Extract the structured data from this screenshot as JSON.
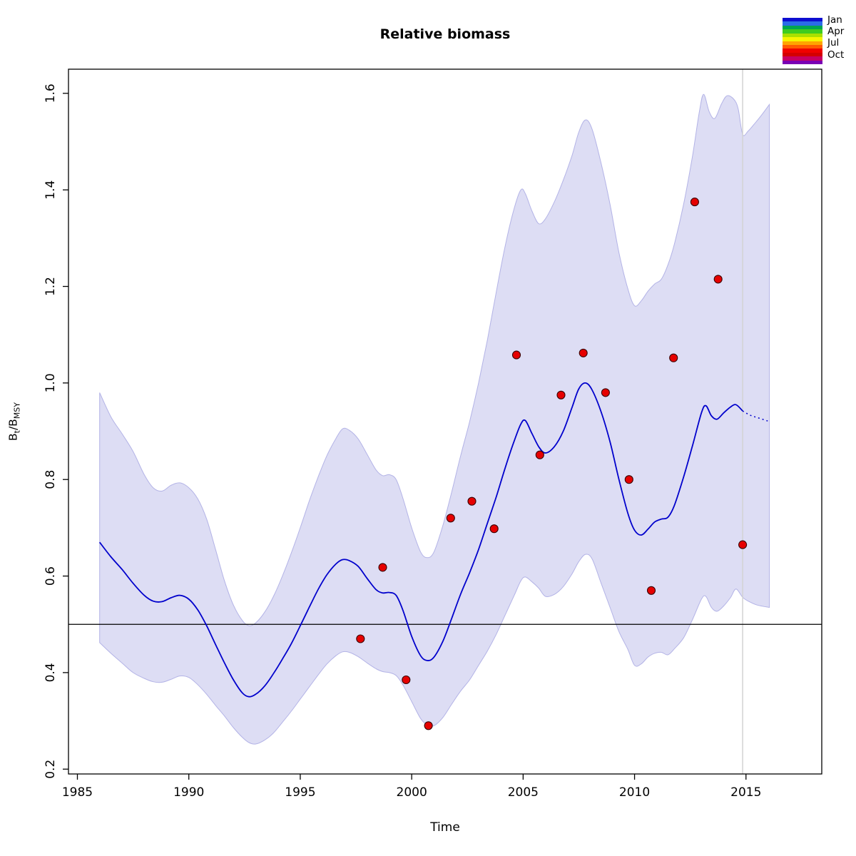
{
  "chart_data": {
    "type": "line",
    "title": "Relative biomass",
    "xlabel": "Time",
    "ylabel": "Bt/BMSY",
    "ylabel_parts": [
      "B",
      "t",
      "/B",
      "MSY"
    ],
    "xlim": [
      1984.6,
      2018.4
    ],
    "ylim": [
      0.19,
      1.65
    ],
    "xtick_values": [
      1985,
      1990,
      1995,
      2000,
      2005,
      2010,
      2015
    ],
    "xtick_labels": [
      "1985",
      "1990",
      "1995",
      "2000",
      "2005",
      "2010",
      "2015"
    ],
    "ytick_values": [
      0.2,
      0.4,
      0.6,
      0.8,
      1.0,
      1.2,
      1.4,
      1.6
    ],
    "ytick_labels": [
      "0.2",
      "0.4",
      "0.6",
      "0.8",
      "1.0",
      "1.2",
      "1.4",
      "1.6"
    ],
    "grid": false,
    "reference_lines": {
      "hline_y": 0.5,
      "vline_x": 2014.85
    },
    "series": [
      {
        "name": "biomass-estimate",
        "type": "line",
        "style": "solid",
        "points": [
          [
            1986.0,
            0.67
          ],
          [
            1986.5,
            0.64
          ],
          [
            1987.0,
            0.614
          ],
          [
            1987.5,
            0.585
          ],
          [
            1988.0,
            0.56
          ],
          [
            1988.4,
            0.548
          ],
          [
            1988.8,
            0.547
          ],
          [
            1989.2,
            0.555
          ],
          [
            1989.6,
            0.56
          ],
          [
            1990.0,
            0.552
          ],
          [
            1990.4,
            0.53
          ],
          [
            1990.8,
            0.497
          ],
          [
            1991.2,
            0.458
          ],
          [
            1991.6,
            0.42
          ],
          [
            1992.0,
            0.385
          ],
          [
            1992.4,
            0.358
          ],
          [
            1992.7,
            0.35
          ],
          [
            1993.0,
            0.355
          ],
          [
            1993.4,
            0.372
          ],
          [
            1993.8,
            0.398
          ],
          [
            1994.2,
            0.428
          ],
          [
            1994.6,
            0.46
          ],
          [
            1995.0,
            0.497
          ],
          [
            1995.4,
            0.535
          ],
          [
            1995.8,
            0.572
          ],
          [
            1996.2,
            0.603
          ],
          [
            1996.6,
            0.625
          ],
          [
            1996.9,
            0.634
          ],
          [
            1997.2,
            0.632
          ],
          [
            1997.6,
            0.62
          ],
          [
            1998.0,
            0.595
          ],
          [
            1998.4,
            0.572
          ],
          [
            1998.7,
            0.565
          ],
          [
            1999.0,
            0.566
          ],
          [
            1999.3,
            0.56
          ],
          [
            1999.6,
            0.53
          ],
          [
            2000.0,
            0.475
          ],
          [
            2000.4,
            0.435
          ],
          [
            2000.7,
            0.425
          ],
          [
            2001.0,
            0.432
          ],
          [
            2001.4,
            0.465
          ],
          [
            2001.8,
            0.513
          ],
          [
            2002.2,
            0.563
          ],
          [
            2002.6,
            0.607
          ],
          [
            2003.0,
            0.655
          ],
          [
            2003.4,
            0.71
          ],
          [
            2003.8,
            0.765
          ],
          [
            2004.2,
            0.825
          ],
          [
            2004.6,
            0.88
          ],
          [
            2004.9,
            0.915
          ],
          [
            2005.1,
            0.922
          ],
          [
            2005.4,
            0.895
          ],
          [
            2005.7,
            0.868
          ],
          [
            2006.0,
            0.855
          ],
          [
            2006.4,
            0.868
          ],
          [
            2006.8,
            0.9
          ],
          [
            2007.2,
            0.95
          ],
          [
            2007.5,
            0.988
          ],
          [
            2007.8,
            1.0
          ],
          [
            2008.1,
            0.985
          ],
          [
            2008.5,
            0.94
          ],
          [
            2008.9,
            0.878
          ],
          [
            2009.3,
            0.8
          ],
          [
            2009.7,
            0.73
          ],
          [
            2010.0,
            0.695
          ],
          [
            2010.3,
            0.685
          ],
          [
            2010.6,
            0.697
          ],
          [
            2010.9,
            0.712
          ],
          [
            2011.2,
            0.718
          ],
          [
            2011.5,
            0.722
          ],
          [
            2011.8,
            0.748
          ],
          [
            2012.2,
            0.805
          ],
          [
            2012.6,
            0.87
          ],
          [
            2013.0,
            0.938
          ],
          [
            2013.2,
            0.953
          ],
          [
            2013.45,
            0.932
          ],
          [
            2013.7,
            0.925
          ],
          [
            2014.0,
            0.938
          ],
          [
            2014.3,
            0.95
          ],
          [
            2014.55,
            0.955
          ],
          [
            2014.85,
            0.942
          ]
        ]
      },
      {
        "name": "biomass-forecast",
        "type": "line",
        "style": "dotted",
        "points": [
          [
            2014.85,
            0.942
          ],
          [
            2015.2,
            0.933
          ],
          [
            2015.6,
            0.927
          ],
          [
            2016.05,
            0.92
          ]
        ]
      },
      {
        "name": "ci-upper",
        "type": "band-edge",
        "points": [
          [
            1986.0,
            0.98
          ],
          [
            1986.5,
            0.93
          ],
          [
            1987.0,
            0.895
          ],
          [
            1987.5,
            0.858
          ],
          [
            1988.0,
            0.81
          ],
          [
            1988.4,
            0.783
          ],
          [
            1988.8,
            0.776
          ],
          [
            1989.2,
            0.788
          ],
          [
            1989.6,
            0.793
          ],
          [
            1990.0,
            0.783
          ],
          [
            1990.4,
            0.76
          ],
          [
            1990.8,
            0.718
          ],
          [
            1991.2,
            0.655
          ],
          [
            1991.6,
            0.59
          ],
          [
            1992.0,
            0.54
          ],
          [
            1992.4,
            0.508
          ],
          [
            1992.7,
            0.497
          ],
          [
            1993.0,
            0.503
          ],
          [
            1993.4,
            0.525
          ],
          [
            1993.8,
            0.558
          ],
          [
            1994.2,
            0.6
          ],
          [
            1994.6,
            0.648
          ],
          [
            1995.0,
            0.7
          ],
          [
            1995.4,
            0.755
          ],
          [
            1995.8,
            0.805
          ],
          [
            1996.2,
            0.85
          ],
          [
            1996.6,
            0.885
          ],
          [
            1996.9,
            0.905
          ],
          [
            1997.2,
            0.902
          ],
          [
            1997.6,
            0.884
          ],
          [
            1998.0,
            0.852
          ],
          [
            1998.4,
            0.82
          ],
          [
            1998.7,
            0.808
          ],
          [
            1999.0,
            0.81
          ],
          [
            1999.3,
            0.8
          ],
          [
            1999.6,
            0.762
          ],
          [
            2000.0,
            0.7
          ],
          [
            2000.4,
            0.65
          ],
          [
            2000.7,
            0.638
          ],
          [
            2001.0,
            0.65
          ],
          [
            2001.4,
            0.705
          ],
          [
            2001.8,
            0.775
          ],
          [
            2002.2,
            0.85
          ],
          [
            2002.6,
            0.92
          ],
          [
            2003.0,
            1.0
          ],
          [
            2003.4,
            1.09
          ],
          [
            2003.8,
            1.19
          ],
          [
            2004.2,
            1.285
          ],
          [
            2004.6,
            1.362
          ],
          [
            2004.9,
            1.4
          ],
          [
            2005.1,
            1.392
          ],
          [
            2005.4,
            1.356
          ],
          [
            2005.7,
            1.33
          ],
          [
            2006.0,
            1.34
          ],
          [
            2006.4,
            1.375
          ],
          [
            2006.8,
            1.42
          ],
          [
            2007.2,
            1.472
          ],
          [
            2007.5,
            1.52
          ],
          [
            2007.8,
            1.545
          ],
          [
            2008.1,
            1.525
          ],
          [
            2008.5,
            1.455
          ],
          [
            2008.9,
            1.37
          ],
          [
            2009.3,
            1.27
          ],
          [
            2009.7,
            1.195
          ],
          [
            2010.0,
            1.16
          ],
          [
            2010.3,
            1.17
          ],
          [
            2010.6,
            1.19
          ],
          [
            2010.9,
            1.205
          ],
          [
            2011.2,
            1.215
          ],
          [
            2011.5,
            1.245
          ],
          [
            2011.8,
            1.29
          ],
          [
            2012.2,
            1.37
          ],
          [
            2012.6,
            1.47
          ],
          [
            2012.9,
            1.56
          ],
          [
            2013.1,
            1.598
          ],
          [
            2013.35,
            1.562
          ],
          [
            2013.6,
            1.548
          ],
          [
            2013.9,
            1.578
          ],
          [
            2014.15,
            1.595
          ],
          [
            2014.45,
            1.588
          ],
          [
            2014.65,
            1.568
          ],
          [
            2014.85,
            1.515
          ],
          [
            2015.1,
            1.522
          ],
          [
            2015.4,
            1.538
          ],
          [
            2015.7,
            1.555
          ],
          [
            2016.05,
            1.577
          ]
        ]
      },
      {
        "name": "ci-lower",
        "type": "band-edge",
        "points": [
          [
            1986.0,
            0.462
          ],
          [
            1986.5,
            0.44
          ],
          [
            1987.0,
            0.42
          ],
          [
            1987.5,
            0.4
          ],
          [
            1988.0,
            0.388
          ],
          [
            1988.4,
            0.381
          ],
          [
            1988.8,
            0.38
          ],
          [
            1989.2,
            0.386
          ],
          [
            1989.6,
            0.393
          ],
          [
            1990.0,
            0.39
          ],
          [
            1990.4,
            0.375
          ],
          [
            1990.8,
            0.355
          ],
          [
            1991.2,
            0.332
          ],
          [
            1991.6,
            0.31
          ],
          [
            1992.0,
            0.286
          ],
          [
            1992.4,
            0.266
          ],
          [
            1992.7,
            0.255
          ],
          [
            1993.0,
            0.252
          ],
          [
            1993.4,
            0.26
          ],
          [
            1993.8,
            0.275
          ],
          [
            1994.2,
            0.297
          ],
          [
            1994.6,
            0.32
          ],
          [
            1995.0,
            0.345
          ],
          [
            1995.4,
            0.37
          ],
          [
            1995.8,
            0.395
          ],
          [
            1996.2,
            0.418
          ],
          [
            1996.6,
            0.435
          ],
          [
            1996.9,
            0.443
          ],
          [
            1997.2,
            0.442
          ],
          [
            1997.6,
            0.433
          ],
          [
            1998.0,
            0.42
          ],
          [
            1998.4,
            0.408
          ],
          [
            1998.7,
            0.402
          ],
          [
            1999.0,
            0.4
          ],
          [
            1999.3,
            0.394
          ],
          [
            1999.6,
            0.375
          ],
          [
            2000.0,
            0.34
          ],
          [
            2000.4,
            0.305
          ],
          [
            2000.7,
            0.292
          ],
          [
            2001.0,
            0.29
          ],
          [
            2001.4,
            0.307
          ],
          [
            2001.8,
            0.335
          ],
          [
            2002.2,
            0.362
          ],
          [
            2002.6,
            0.385
          ],
          [
            2003.0,
            0.415
          ],
          [
            2003.4,
            0.445
          ],
          [
            2003.8,
            0.48
          ],
          [
            2004.2,
            0.52
          ],
          [
            2004.6,
            0.56
          ],
          [
            2004.9,
            0.59
          ],
          [
            2005.1,
            0.598
          ],
          [
            2005.4,
            0.588
          ],
          [
            2005.7,
            0.575
          ],
          [
            2006.0,
            0.558
          ],
          [
            2006.4,
            0.562
          ],
          [
            2006.8,
            0.578
          ],
          [
            2007.2,
            0.605
          ],
          [
            2007.5,
            0.63
          ],
          [
            2007.8,
            0.645
          ],
          [
            2008.1,
            0.635
          ],
          [
            2008.5,
            0.585
          ],
          [
            2008.9,
            0.535
          ],
          [
            2009.3,
            0.485
          ],
          [
            2009.7,
            0.448
          ],
          [
            2010.0,
            0.415
          ],
          [
            2010.3,
            0.418
          ],
          [
            2010.6,
            0.432
          ],
          [
            2010.9,
            0.44
          ],
          [
            2011.2,
            0.442
          ],
          [
            2011.5,
            0.437
          ],
          [
            2011.8,
            0.45
          ],
          [
            2012.2,
            0.472
          ],
          [
            2012.6,
            0.51
          ],
          [
            2013.0,
            0.552
          ],
          [
            2013.2,
            0.558
          ],
          [
            2013.45,
            0.535
          ],
          [
            2013.7,
            0.527
          ],
          [
            2014.0,
            0.538
          ],
          [
            2014.3,
            0.555
          ],
          [
            2014.55,
            0.573
          ],
          [
            2014.85,
            0.556
          ],
          [
            2015.1,
            0.548
          ],
          [
            2015.5,
            0.54
          ],
          [
            2016.05,
            0.535
          ]
        ]
      },
      {
        "name": "observations",
        "type": "scatter",
        "points": [
          [
            1997.7,
            0.47
          ],
          [
            1998.7,
            0.618
          ],
          [
            1999.75,
            0.385
          ],
          [
            2000.75,
            0.29
          ],
          [
            2001.75,
            0.72
          ],
          [
            2002.7,
            0.755
          ],
          [
            2003.7,
            0.698
          ],
          [
            2004.7,
            1.058
          ],
          [
            2005.75,
            0.851
          ],
          [
            2006.7,
            0.975
          ],
          [
            2007.7,
            1.062
          ],
          [
            2008.7,
            0.98
          ],
          [
            2009.75,
            0.8
          ],
          [
            2010.75,
            0.57
          ],
          [
            2011.75,
            1.052
          ],
          [
            2012.7,
            1.375
          ],
          [
            2013.75,
            1.215
          ],
          [
            2014.85,
            0.665
          ]
        ]
      }
    ],
    "legend": {
      "position": "top-right",
      "labels": [
        "Jan",
        "Apr",
        "Jul",
        "Oct"
      ],
      "colorbar": [
        "#0d0dd0",
        "#2b6be8",
        "#00a550",
        "#3ecc1f",
        "#a8e000",
        "#f5f500",
        "#ffa500",
        "#ff5a00",
        "#f00000",
        "#d40000",
        "#c80064",
        "#7a00b4"
      ]
    },
    "colors": {
      "band_fill": "#9e9ee0",
      "band_fill_opacity": 0.35,
      "band_edge": "#b3b3e6",
      "estimate_line": "#0000cc",
      "observation_fill": "#e60000",
      "observation_edge": "#3a0000",
      "hline": "#000000",
      "vline": "#d3d3d3",
      "axis": "#000000",
      "background": "#ffffff"
    }
  }
}
